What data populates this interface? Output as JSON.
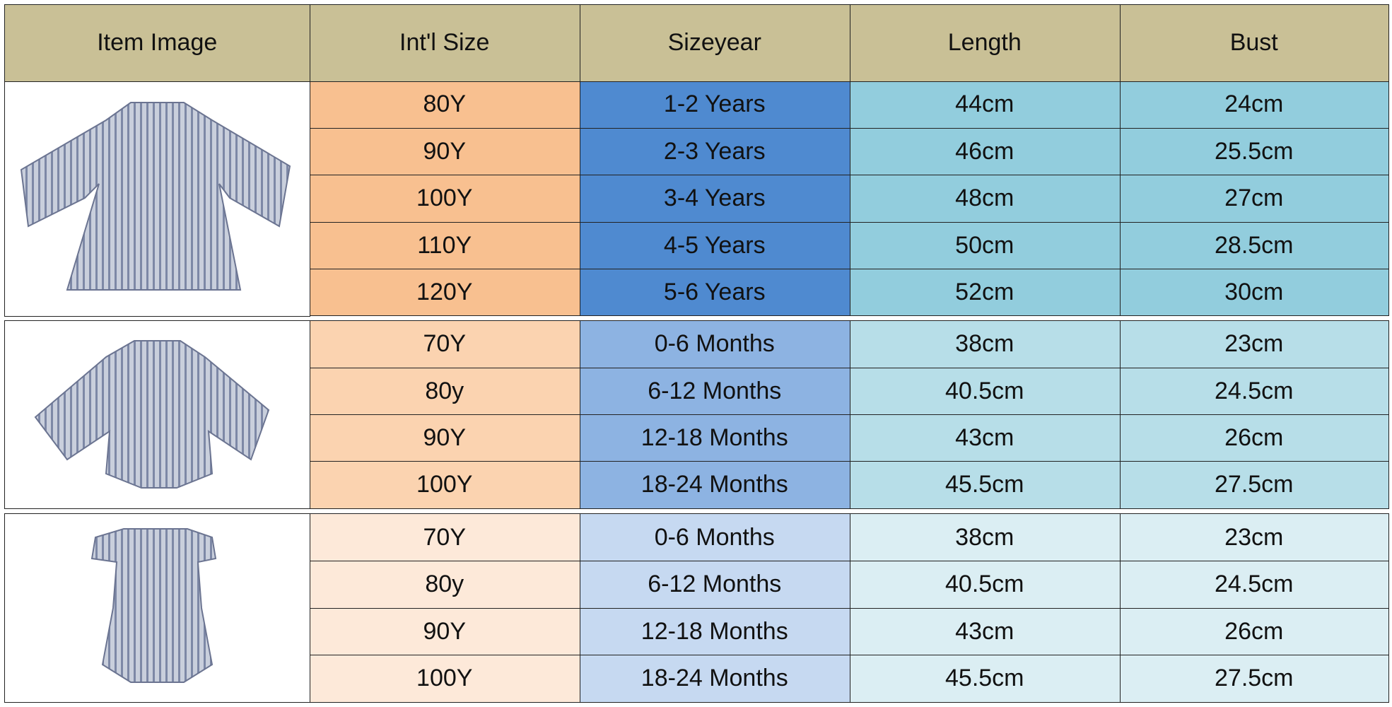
{
  "table": {
    "header": [
      "Item Image",
      "Int'l Size",
      "Sizeyear",
      "Length",
      "Bust"
    ],
    "groups": [
      {
        "rows": [
          [
            "80Y",
            "1-2 Years",
            "44cm",
            "24cm"
          ],
          [
            "90Y",
            "2-3 Years",
            "46cm",
            "25.5cm"
          ],
          [
            "100Y",
            "3-4 Years",
            "48cm",
            "27cm"
          ],
          [
            "110Y",
            "4-5 Years",
            "50cm",
            "28.5cm"
          ],
          [
            "120Y",
            "5-6 Years",
            "52cm",
            "30cm"
          ]
        ]
      },
      {
        "rows": [
          [
            "70Y",
            "0-6 Months",
            "38cm",
            "23cm"
          ],
          [
            "80y",
            "6-12 Months",
            "40.5cm",
            "24.5cm"
          ],
          [
            "90Y",
            "12-18 Months",
            "43cm",
            "26cm"
          ],
          [
            "100Y",
            "18-24 Months",
            "45.5cm",
            "27.5cm"
          ]
        ]
      },
      {
        "rows": [
          [
            "70Y",
            "0-6 Months",
            "38cm",
            "23cm"
          ],
          [
            "80y",
            "6-12 Months",
            "40.5cm",
            "24.5cm"
          ],
          [
            "90Y",
            "12-18 Months",
            "43cm",
            "26cm"
          ],
          [
            "100Y",
            "18-24 Months",
            "45.5cm",
            "27.5cm"
          ]
        ]
      }
    ]
  }
}
